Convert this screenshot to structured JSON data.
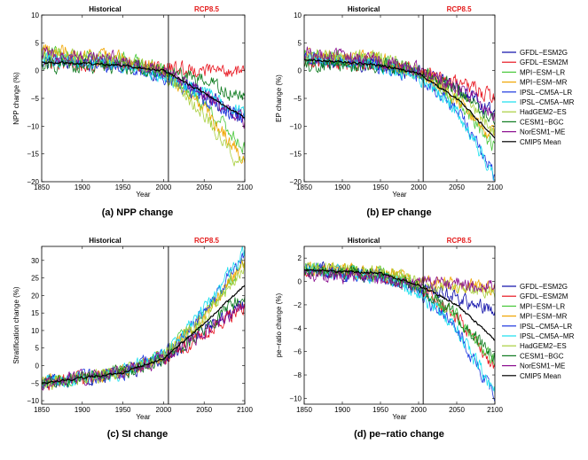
{
  "figure": {
    "series": [
      {
        "name": "GFDL−ESM2G",
        "color": "#0a0aa8"
      },
      {
        "name": "GFDL−ESM2M",
        "color": "#e8141e"
      },
      {
        "name": "MPI−ESM−LR",
        "color": "#48c83a"
      },
      {
        "name": "MPI−ESM−MR",
        "color": "#f0a500"
      },
      {
        "name": "IPSL−CM5A−LR",
        "color": "#1a35e0"
      },
      {
        "name": "IPSL−CM5A−MR",
        "color": "#18e0ee"
      },
      {
        "name": "HadGEM2−ES",
        "color": "#a8cf3c"
      },
      {
        "name": "CESM1−BGC",
        "color": "#0d7a1e"
      },
      {
        "name": "NorESM1−ME",
        "color": "#8a0d8f"
      },
      {
        "name": "CMIP5 Mean",
        "color": "#000000"
      }
    ],
    "era_labels": {
      "historical": "Historical",
      "future": "RCP8.5",
      "future_color": "#e41b1b"
    }
  },
  "chart_data": [
    {
      "type": "line",
      "panel": "a",
      "caption": "(a) NPP change",
      "title": "",
      "xlabel": "Year",
      "ylabel": "NPP change (%)",
      "xlim": [
        1850,
        2100
      ],
      "ylim": [
        -20,
        10
      ],
      "xticks": [
        1850,
        1900,
        1950,
        2000,
        2050,
        2100
      ],
      "yticks": [
        -20,
        -15,
        -10,
        -5,
        0,
        5,
        10
      ],
      "divider_year": 2006,
      "legend": "none",
      "series": [
        {
          "name": "GFDL−ESM2G",
          "x": [
            1850,
            1950,
            2000,
            2050,
            2100
          ],
          "y": [
            2,
            1,
            -0.5,
            -4,
            -9.5
          ]
        },
        {
          "name": "GFDL−ESM2M",
          "x": [
            1850,
            1950,
            2000,
            2050,
            2100
          ],
          "y": [
            1.5,
            1,
            0.5,
            0,
            0
          ]
        },
        {
          "name": "MPI−ESM−LR",
          "x": [
            1850,
            1950,
            2000,
            2050,
            2100
          ],
          "y": [
            3,
            2,
            0,
            -6,
            -14
          ]
        },
        {
          "name": "MPI−ESM−MR",
          "x": [
            1850,
            1950,
            2000,
            2050,
            2100
          ],
          "y": [
            4,
            2,
            0,
            -7,
            -16
          ]
        },
        {
          "name": "IPSL−CM5A−LR",
          "x": [
            1850,
            1950,
            2000,
            2050,
            2100
          ],
          "y": [
            2,
            1,
            -1,
            -5,
            -9
          ]
        },
        {
          "name": "IPSL−CM5A−MR",
          "x": [
            1850,
            1950,
            2000,
            2050,
            2100
          ],
          "y": [
            2,
            1,
            -1,
            -4,
            -8
          ]
        },
        {
          "name": "HadGEM2−ES",
          "x": [
            1850,
            1950,
            2000,
            2050,
            2100
          ],
          "y": [
            3,
            2,
            -0.5,
            -8,
            -18
          ]
        },
        {
          "name": "CESM1−BGC",
          "x": [
            1850,
            1950,
            2000,
            2050,
            2100
          ],
          "y": [
            1,
            1,
            0,
            -2,
            -5
          ]
        },
        {
          "name": "NorESM1−ME",
          "x": [
            1850,
            1950,
            2000,
            2050,
            2100
          ],
          "y": [
            3,
            2,
            0,
            -4,
            -9
          ]
        },
        {
          "name": "CMIP5 Mean",
          "x": [
            1850,
            1950,
            2000,
            2050,
            2100
          ],
          "y": [
            1.5,
            1,
            0,
            -4,
            -8.5
          ]
        }
      ]
    },
    {
      "type": "line",
      "panel": "b",
      "caption": "(b) EP change",
      "title": "",
      "xlabel": "Year",
      "ylabel": "EP change (%)",
      "xlim": [
        1850,
        2100
      ],
      "ylim": [
        -20,
        10
      ],
      "xticks": [
        1850,
        1900,
        1950,
        2000,
        2050,
        2100
      ],
      "yticks": [
        -20,
        -15,
        -10,
        -5,
        0,
        5,
        10
      ],
      "divider_year": 2006,
      "legend": "right",
      "series": [
        {
          "name": "GFDL−ESM2G",
          "x": [
            1850,
            1950,
            2000,
            2050,
            2100
          ],
          "y": [
            2,
            1,
            -0.5,
            -3,
            -8
          ]
        },
        {
          "name": "GFDL−ESM2M",
          "x": [
            1850,
            1950,
            2000,
            2050,
            2100
          ],
          "y": [
            1.5,
            1,
            0,
            -2,
            -5
          ]
        },
        {
          "name": "MPI−ESM−LR",
          "x": [
            1850,
            1950,
            2000,
            2050,
            2100
          ],
          "y": [
            3,
            2,
            -0.5,
            -5,
            -14
          ]
        },
        {
          "name": "MPI−ESM−MR",
          "x": [
            1850,
            1950,
            2000,
            2050,
            2100
          ],
          "y": [
            3,
            2,
            -0.5,
            -5,
            -12
          ]
        },
        {
          "name": "IPSL−CM5A−LR",
          "x": [
            1850,
            1950,
            2000,
            2050,
            2100
          ],
          "y": [
            2,
            1,
            -1,
            -7,
            -19
          ]
        },
        {
          "name": "IPSL−CM5A−MR",
          "x": [
            1850,
            1950,
            2000,
            2050,
            2100
          ],
          "y": [
            2,
            1,
            -1,
            -7,
            -19
          ]
        },
        {
          "name": "HadGEM2−ES",
          "x": [
            1850,
            1950,
            2000,
            2050,
            2100
          ],
          "y": [
            3,
            2,
            0,
            -4,
            -11
          ]
        },
        {
          "name": "CESM1−BGC",
          "x": [
            1850,
            1950,
            2000,
            2050,
            2100
          ],
          "y": [
            1,
            1,
            0,
            -3,
            -9
          ]
        },
        {
          "name": "NorESM1−ME",
          "x": [
            1850,
            1950,
            2000,
            2050,
            2100
          ],
          "y": [
            3,
            2,
            0,
            -3,
            -8
          ]
        },
        {
          "name": "CMIP5 Mean",
          "x": [
            1850,
            1950,
            2000,
            2050,
            2100
          ],
          "y": [
            2,
            1,
            -0.5,
            -5,
            -12
          ]
        }
      ]
    },
    {
      "type": "line",
      "panel": "c",
      "caption": "(c) SI change",
      "title": "",
      "xlabel": "Year",
      "ylabel": "Stratification change (%)",
      "xlim": [
        1850,
        2100
      ],
      "ylim": [
        -11,
        34
      ],
      "xticks": [
        1850,
        1900,
        1950,
        2000,
        2050,
        2100
      ],
      "yticks": [
        -10,
        -5,
        0,
        5,
        10,
        15,
        20,
        25,
        30
      ],
      "divider_year": 2006,
      "legend": "none",
      "series": [
        {
          "name": "GFDL−ESM2G",
          "x": [
            1850,
            1950,
            2000,
            2050,
            2100
          ],
          "y": [
            -5,
            -2,
            2,
            10,
            18
          ]
        },
        {
          "name": "GFDL−ESM2M",
          "x": [
            1850,
            1950,
            2000,
            2050,
            2100
          ],
          "y": [
            -5,
            -2,
            2,
            9,
            17
          ]
        },
        {
          "name": "MPI−ESM−LR",
          "x": [
            1850,
            1950,
            2000,
            2050,
            2100
          ],
          "y": [
            -5,
            -2,
            3,
            14,
            30
          ]
        },
        {
          "name": "MPI−ESM−MR",
          "x": [
            1850,
            1950,
            2000,
            2050,
            2100
          ],
          "y": [
            -5,
            -2,
            3,
            14,
            30
          ]
        },
        {
          "name": "IPSL−CM5A−LR",
          "x": [
            1850,
            1950,
            2000,
            2050,
            2100
          ],
          "y": [
            -5,
            -2,
            3,
            15,
            32
          ]
        },
        {
          "name": "IPSL−CM5A−MR",
          "x": [
            1850,
            1950,
            2000,
            2050,
            2100
          ],
          "y": [
            -5,
            -2,
            3,
            16,
            33
          ]
        },
        {
          "name": "HadGEM2−ES",
          "x": [
            1850,
            1950,
            2000,
            2050,
            2100
          ],
          "y": [
            -5,
            -2,
            3,
            14,
            28
          ]
        },
        {
          "name": "CESM1−BGC",
          "x": [
            1850,
            1950,
            2000,
            2050,
            2100
          ],
          "y": [
            -5,
            -2,
            2,
            10,
            20
          ]
        },
        {
          "name": "NorESM1−ME",
          "x": [
            1850,
            1950,
            2000,
            2050,
            2100
          ],
          "y": [
            -5,
            -2,
            2,
            9,
            17
          ]
        },
        {
          "name": "CMIP5 Mean",
          "x": [
            1850,
            1950,
            2000,
            2050,
            2100
          ],
          "y": [
            -5,
            -2,
            2,
            12,
            23
          ]
        }
      ]
    },
    {
      "type": "line",
      "panel": "d",
      "caption": "(d) pe−ratio change",
      "title": "",
      "xlabel": "Year",
      "ylabel": "pe−ratio change (%)",
      "xlim": [
        1850,
        2100
      ],
      "ylim": [
        -10.5,
        3
      ],
      "xticks": [
        1850,
        1900,
        1950,
        2000,
        2050,
        2100
      ],
      "yticks": [
        -10,
        -8,
        -6,
        -4,
        -2,
        0,
        2
      ],
      "divider_year": 2006,
      "legend": "right",
      "series": [
        {
          "name": "GFDL−ESM2G",
          "x": [
            1850,
            1950,
            2000,
            2050,
            2100
          ],
          "y": [
            1,
            0.5,
            -0.3,
            -1.5,
            -2.5
          ]
        },
        {
          "name": "GFDL−ESM2M",
          "x": [
            1850,
            1950,
            2000,
            2050,
            2100
          ],
          "y": [
            1,
            0.5,
            -0.5,
            -3,
            -7.5
          ]
        },
        {
          "name": "MPI−ESM−LR",
          "x": [
            1850,
            1950,
            2000,
            2050,
            2100
          ],
          "y": [
            1,
            0.8,
            -0.5,
            -3,
            -7
          ]
        },
        {
          "name": "MPI−ESM−MR",
          "x": [
            1850,
            1950,
            2000,
            2050,
            2100
          ],
          "y": [
            1,
            0.8,
            0,
            -0.3,
            -0.5
          ]
        },
        {
          "name": "IPSL−CM5A−LR",
          "x": [
            1850,
            1950,
            2000,
            2050,
            2100
          ],
          "y": [
            1,
            0.5,
            -1,
            -4,
            -10
          ]
        },
        {
          "name": "IPSL−CM5A−MR",
          "x": [
            1850,
            1950,
            2000,
            2050,
            2100
          ],
          "y": [
            1,
            0.5,
            -1,
            -4,
            -9.5
          ]
        },
        {
          "name": "HadGEM2−ES",
          "x": [
            1850,
            1950,
            2000,
            2050,
            2100
          ],
          "y": [
            1,
            0.8,
            0,
            -0.5,
            -1
          ]
        },
        {
          "name": "CESM1−BGC",
          "x": [
            1850,
            1950,
            2000,
            2050,
            2100
          ],
          "y": [
            1,
            0.5,
            -0.5,
            -3,
            -6.5
          ]
        },
        {
          "name": "NorESM1−ME",
          "x": [
            1850,
            1950,
            2000,
            2050,
            2100
          ],
          "y": [
            0.5,
            0.3,
            0,
            -0.2,
            -0.5
          ]
        },
        {
          "name": "CMIP5 Mean",
          "x": [
            1850,
            1950,
            2000,
            2050,
            2100
          ],
          "y": [
            1,
            0.7,
            -0.3,
            -2,
            -5
          ]
        }
      ]
    }
  ]
}
